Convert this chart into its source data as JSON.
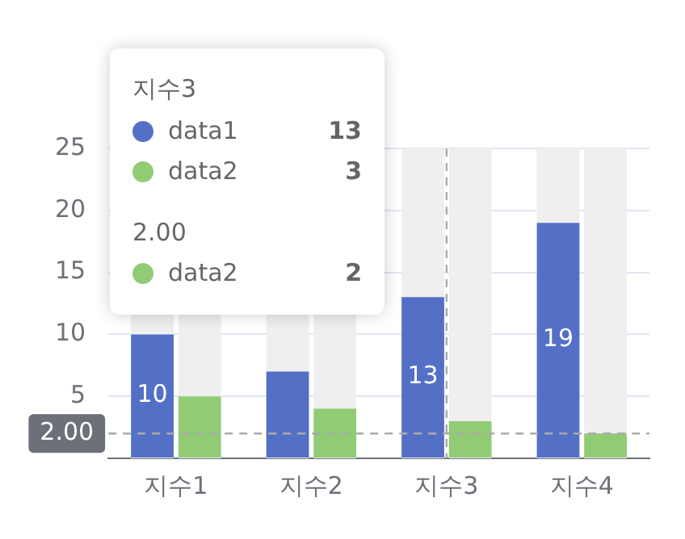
{
  "chart_data": {
    "type": "bar",
    "categories": [
      "지수1",
      "지수2",
      "지수3",
      "지수4"
    ],
    "series": [
      {
        "name": "data1",
        "color": "#5470c6",
        "values": [
          10,
          7,
          13,
          19
        ],
        "value_labels": [
          "10",
          null,
          "13",
          "19"
        ]
      },
      {
        "name": "data2",
        "color": "#91cc75",
        "values": [
          5,
          4,
          3,
          2
        ]
      }
    ],
    "ylim": [
      0,
      25
    ],
    "yticks": [
      {
        "value": 0,
        "label": null
      },
      5,
      10,
      15,
      20,
      25
    ],
    "grid": "y",
    "legend": "top left",
    "ref_lines": [
      {
        "axis": "y",
        "value": 2,
        "label": "2.00",
        "color": "#aaaaaa",
        "line_style": "dashed"
      },
      {
        "axis": "x",
        "value": "지수3",
        "color": "#aaaaaa",
        "line_style": "dashed"
      }
    ],
    "annotations": [
      "13",
      "3",
      "2"
    ]
  }
}
